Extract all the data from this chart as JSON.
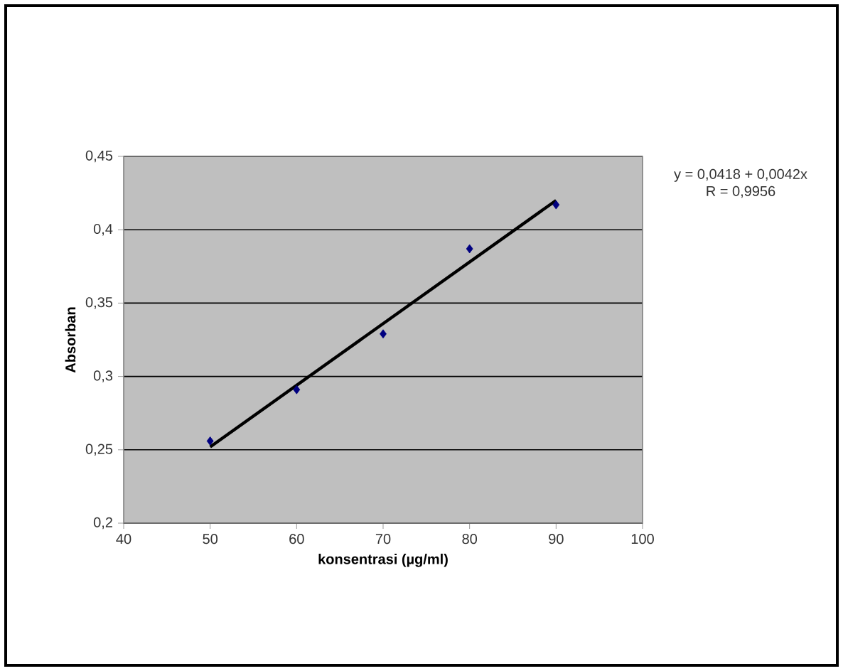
{
  "chart_data": {
    "type": "scatter",
    "xlabel": "konsentrasi (µg/ml)",
    "ylabel": "Absorban",
    "xlim": [
      40,
      100
    ],
    "xticks": [
      40,
      50,
      60,
      70,
      80,
      90,
      100
    ],
    "ylim": [
      0.2,
      0.45
    ],
    "yticks": [
      {
        "value": 0.2,
        "label": "0,2"
      },
      {
        "value": 0.25,
        "label": "0,25"
      },
      {
        "value": 0.3,
        "label": "0,3"
      },
      {
        "value": 0.35,
        "label": "0,35"
      },
      {
        "value": 0.4,
        "label": "0,4"
      },
      {
        "value": 0.45,
        "label": "0,45"
      }
    ],
    "grid": "y",
    "series": [
      {
        "color": "#000080",
        "marker": "diamond",
        "x": [
          50,
          60,
          70,
          80,
          90
        ],
        "values": [
          0.256,
          0.291,
          0.329,
          0.387,
          0.417
        ]
      },
      {
        "type": "line",
        "color": "#000000",
        "marker": "none",
        "line_style": "solid",
        "x": [
          50,
          90
        ],
        "values": [
          0.252,
          0.42
        ]
      }
    ],
    "annotations": [
      "y =  0,0418 + 0,0042x",
      "R = 0,9956"
    ]
  }
}
